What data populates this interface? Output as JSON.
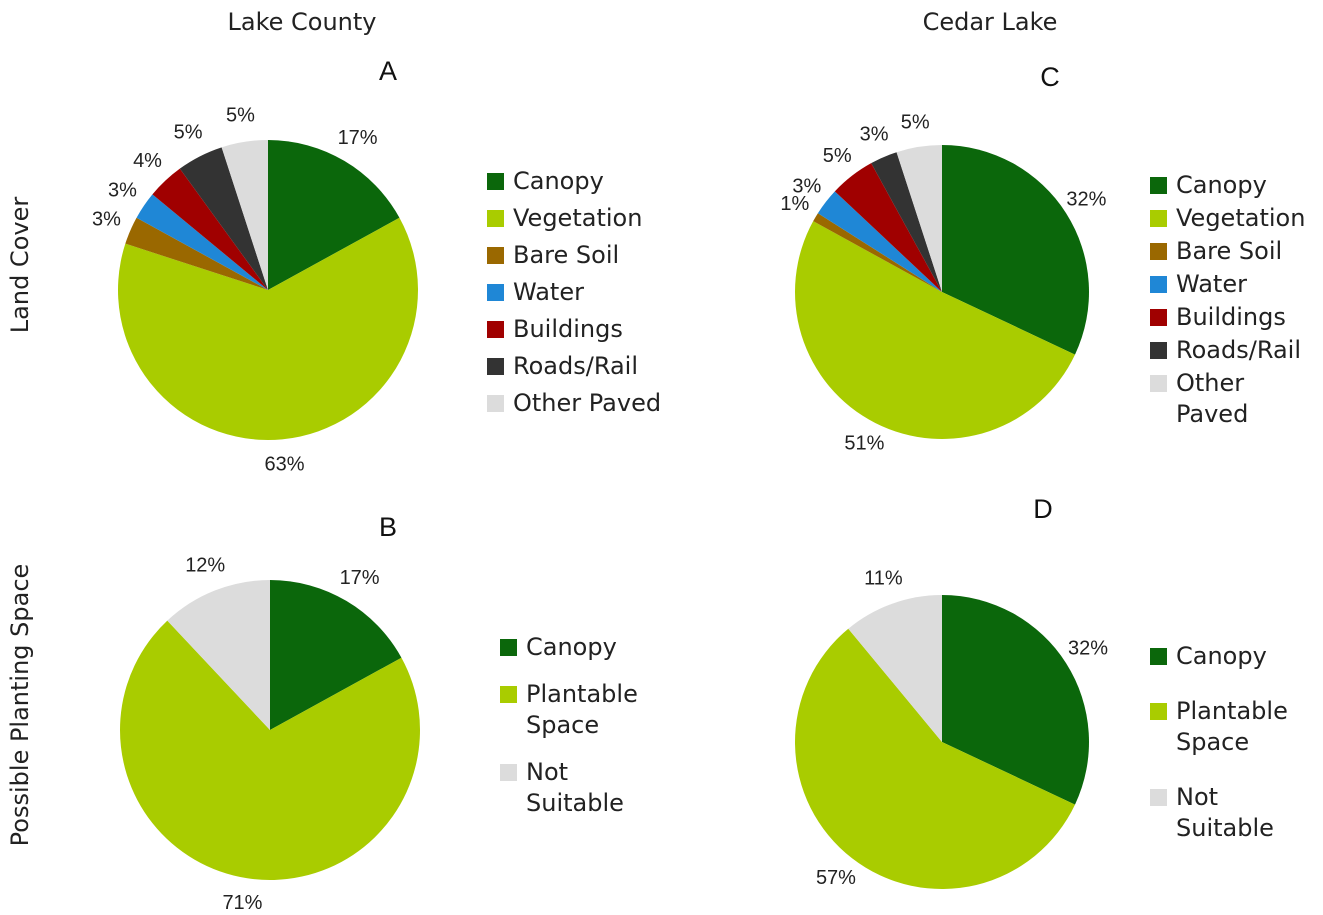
{
  "columns": [
    "Lake County",
    "Cedar Lake"
  ],
  "rows": [
    "Land Cover",
    "Possible Planting Space"
  ],
  "chart_data": [
    {
      "type": "pie",
      "title": "A",
      "categories": [
        "Canopy",
        "Vegetation",
        "Bare Soil",
        "Water",
        "Buildings",
        "Roads/Rail",
        "Other Paved"
      ],
      "values": [
        17,
        63,
        3,
        3,
        4,
        5,
        5
      ],
      "value_labels": [
        "17%",
        "63%",
        "3%",
        "3%",
        "4%",
        "5%",
        "5%"
      ],
      "colors": [
        "#0b670b",
        "#a9cc00",
        "#9a6800",
        "#1f87d6",
        "#a00000",
        "#333333",
        "#dcdcdc"
      ]
    },
    {
      "type": "pie",
      "title": "B",
      "categories": [
        "Canopy",
        "Plantable Space",
        "Not Suitable"
      ],
      "values": [
        17,
        71,
        12
      ],
      "value_labels": [
        "17%",
        "71%",
        "12%"
      ],
      "colors": [
        "#0b670b",
        "#a9cc00",
        "#dcdcdc"
      ]
    },
    {
      "type": "pie",
      "title": "C",
      "categories": [
        "Canopy",
        "Vegetation",
        "Bare Soil",
        "Water",
        "Buildings",
        "Roads/Rail",
        "Other Paved"
      ],
      "values": [
        32,
        51,
        1,
        3,
        5,
        3,
        5
      ],
      "value_labels": [
        "32%",
        "51%",
        "1%",
        "3%",
        "5%",
        "3%",
        "5%"
      ],
      "colors": [
        "#0b670b",
        "#a9cc00",
        "#9a6800",
        "#1f87d6",
        "#a00000",
        "#333333",
        "#dcdcdc"
      ]
    },
    {
      "type": "pie",
      "title": "D",
      "categories": [
        "Canopy",
        "Plantable Space",
        "Not Suitable"
      ],
      "values": [
        32,
        57,
        11
      ],
      "value_labels": [
        "32%",
        "57%",
        "11%"
      ],
      "colors": [
        "#0b670b",
        "#a9cc00",
        "#dcdcdc"
      ]
    }
  ]
}
